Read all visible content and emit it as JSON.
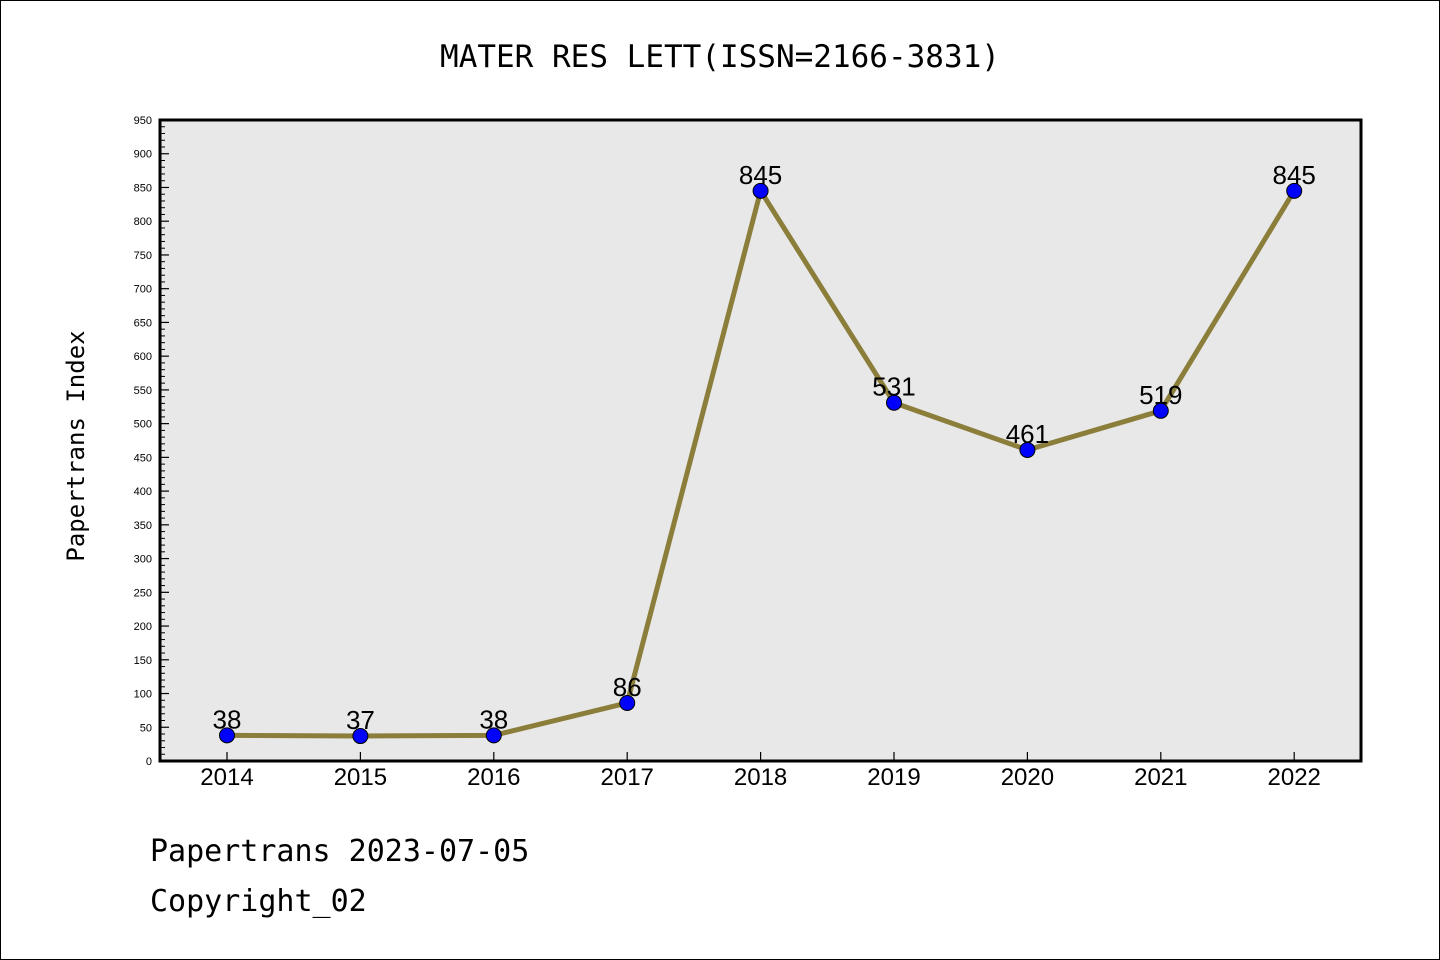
{
  "chart_data": {
    "type": "line",
    "title": "MATER RES LETT(ISSN=2166-3831)",
    "xlabel": "",
    "ylabel": "Papertrans Index",
    "categories": [
      "2014",
      "2015",
      "2016",
      "2017",
      "2018",
      "2019",
      "2020",
      "2021",
      "2022"
    ],
    "series": [
      {
        "values": [
          38,
          37,
          38,
          86,
          845,
          531,
          461,
          519,
          845
        ]
      }
    ],
    "data_labels": [
      "38",
      "37",
      "38",
      "86",
      "845",
      "531",
      "461",
      "519",
      "845"
    ],
    "ylim": [
      0,
      950
    ],
    "yticks": [
      0,
      50,
      100,
      150,
      200,
      250,
      300,
      350,
      400,
      450,
      500,
      550,
      600,
      650,
      700,
      750,
      800,
      850,
      900,
      950
    ],
    "grid": false,
    "legend": "none",
    "colors": {
      "line": "#8b7d3a",
      "marker": "#0000ff",
      "plot_background": "#e8e8e8"
    }
  },
  "footer": {
    "line1": "Papertrans 2023-07-05",
    "line2": "Copyright_02"
  }
}
